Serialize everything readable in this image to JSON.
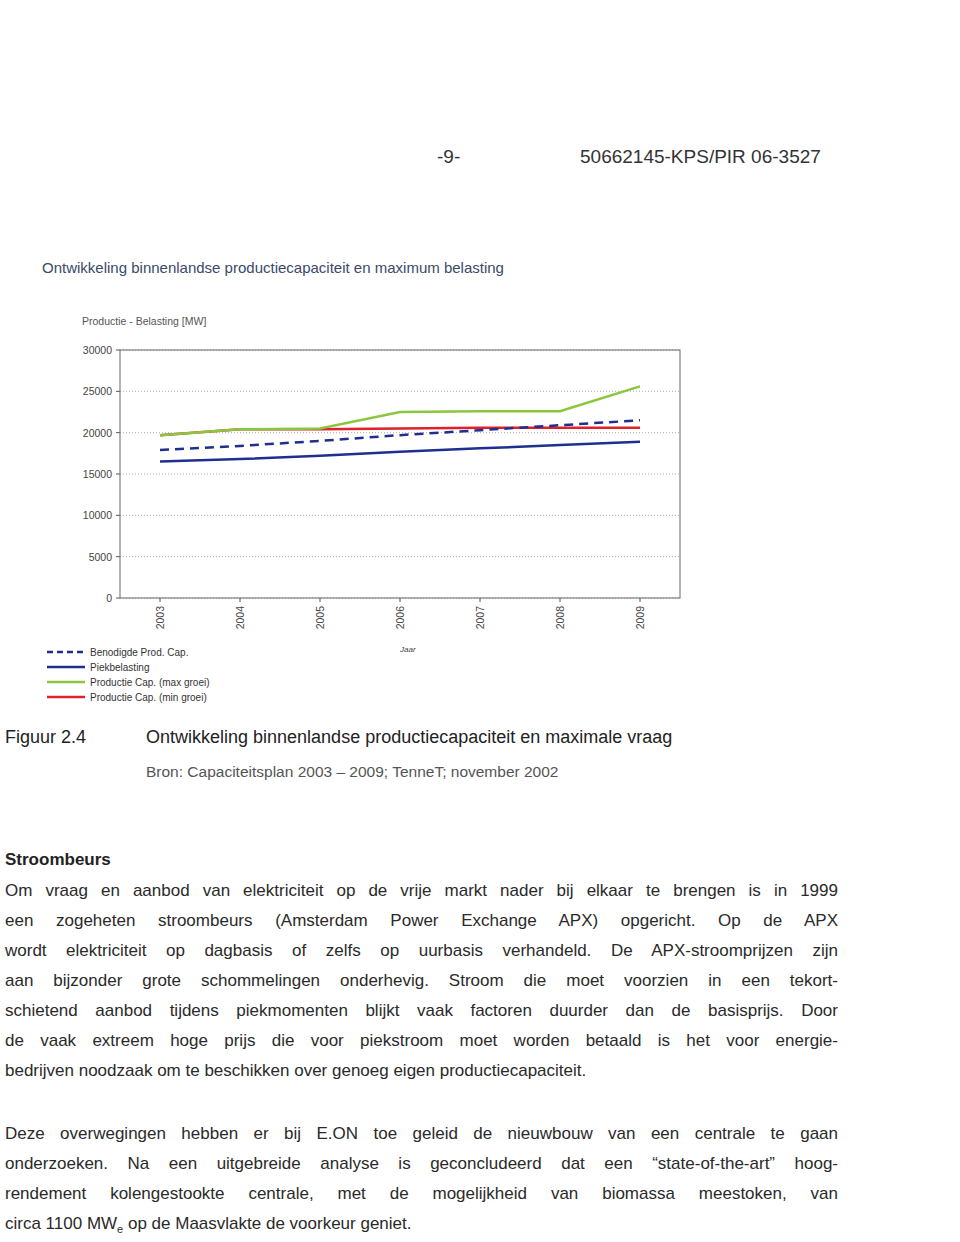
{
  "header": {
    "page_number": "-9-",
    "reference": "50662145-KPS/PIR 06-3527"
  },
  "chart_data": {
    "type": "line",
    "title": "Ontwikkeling binnenlandse productiecapaciteit en maximum belasting",
    "y_label": "Productie - Belasting [MW]",
    "x_label": "Jaar",
    "categories": [
      "2003",
      "2004",
      "2005",
      "2006",
      "2007",
      "2008",
      "2009"
    ],
    "series": [
      {
        "name": "Benodigde Prod. Cap.",
        "color": "#1f2f8f",
        "line_style": "dashed",
        "values": [
          17900,
          18400,
          19000,
          19700,
          20300,
          20900,
          21500
        ]
      },
      {
        "name": "Piekbelasting",
        "color": "#1f2f8f",
        "line_style": "solid",
        "values": [
          16500,
          16800,
          17200,
          17700,
          18100,
          18500,
          18900
        ]
      },
      {
        "name": "Productie Cap. (max groei)",
        "color": "#8cc63f",
        "line_style": "solid",
        "values": [
          19700,
          20400,
          20500,
          22500,
          22600,
          22600,
          25600
        ]
      },
      {
        "name": "Productie Cap. (min groei)",
        "color": "#e0202a",
        "line_style": "solid",
        "values": [
          19700,
          20400,
          20400,
          20500,
          20600,
          20600,
          20600
        ]
      }
    ],
    "ylim": [
      0,
      30000
    ],
    "yticks": [
      0,
      5000,
      10000,
      15000,
      20000,
      25000,
      30000
    ],
    "grid": true,
    "legend": "bottom-left"
  },
  "figure": {
    "label": "Figuur 2.4",
    "caption": "Ontwikkeling binnenlandse productiecapaciteit en maximale vraag",
    "source": "Bron: Capaciteitsplan 2003 – 2009; TenneT; november 2002"
  },
  "sections": [
    {
      "heading": "Stroombeurs",
      "lines": [
        "Om vraag en aanbod van elektriciteit op de vrije markt nader bij elkaar te brengen is in 1999",
        "een zogeheten stroombeurs (Amsterdam Power Exchange APX) opgericht. Op de APX",
        "wordt elektriciteit op dagbasis of zelfs op uurbasis verhandeld. De APX-stroomprijzen zijn",
        "aan bijzonder grote schommelingen onderhevig. Stroom die moet voorzien in een tekort-",
        "schietend aanbod tijdens piekmomenten blijkt vaak factoren duurder dan de basisprijs. Door",
        "de vaak extreem hoge prijs die voor piekstroom moet worden betaald is het voor energie-",
        "bedrijven noodzaak om te beschikken over genoeg eigen productiecapaciteit."
      ]
    },
    {
      "lines": [
        "Deze overwegingen hebben er bij E.ON toe geleid de nieuwbouw van een centrale te gaan",
        "onderzoeken. Na een uitgebreide analyse is geconcludeerd dat een “state-of-the-art” hoog-",
        "rendement kolengestookte centrale, met de mogelijkheid van biomassa meestoken, van"
      ],
      "last_line": {
        "before": "circa 1100 MW",
        "sub": "e",
        "after": " op de Maasvlakte de voorkeur geniet."
      }
    }
  ]
}
